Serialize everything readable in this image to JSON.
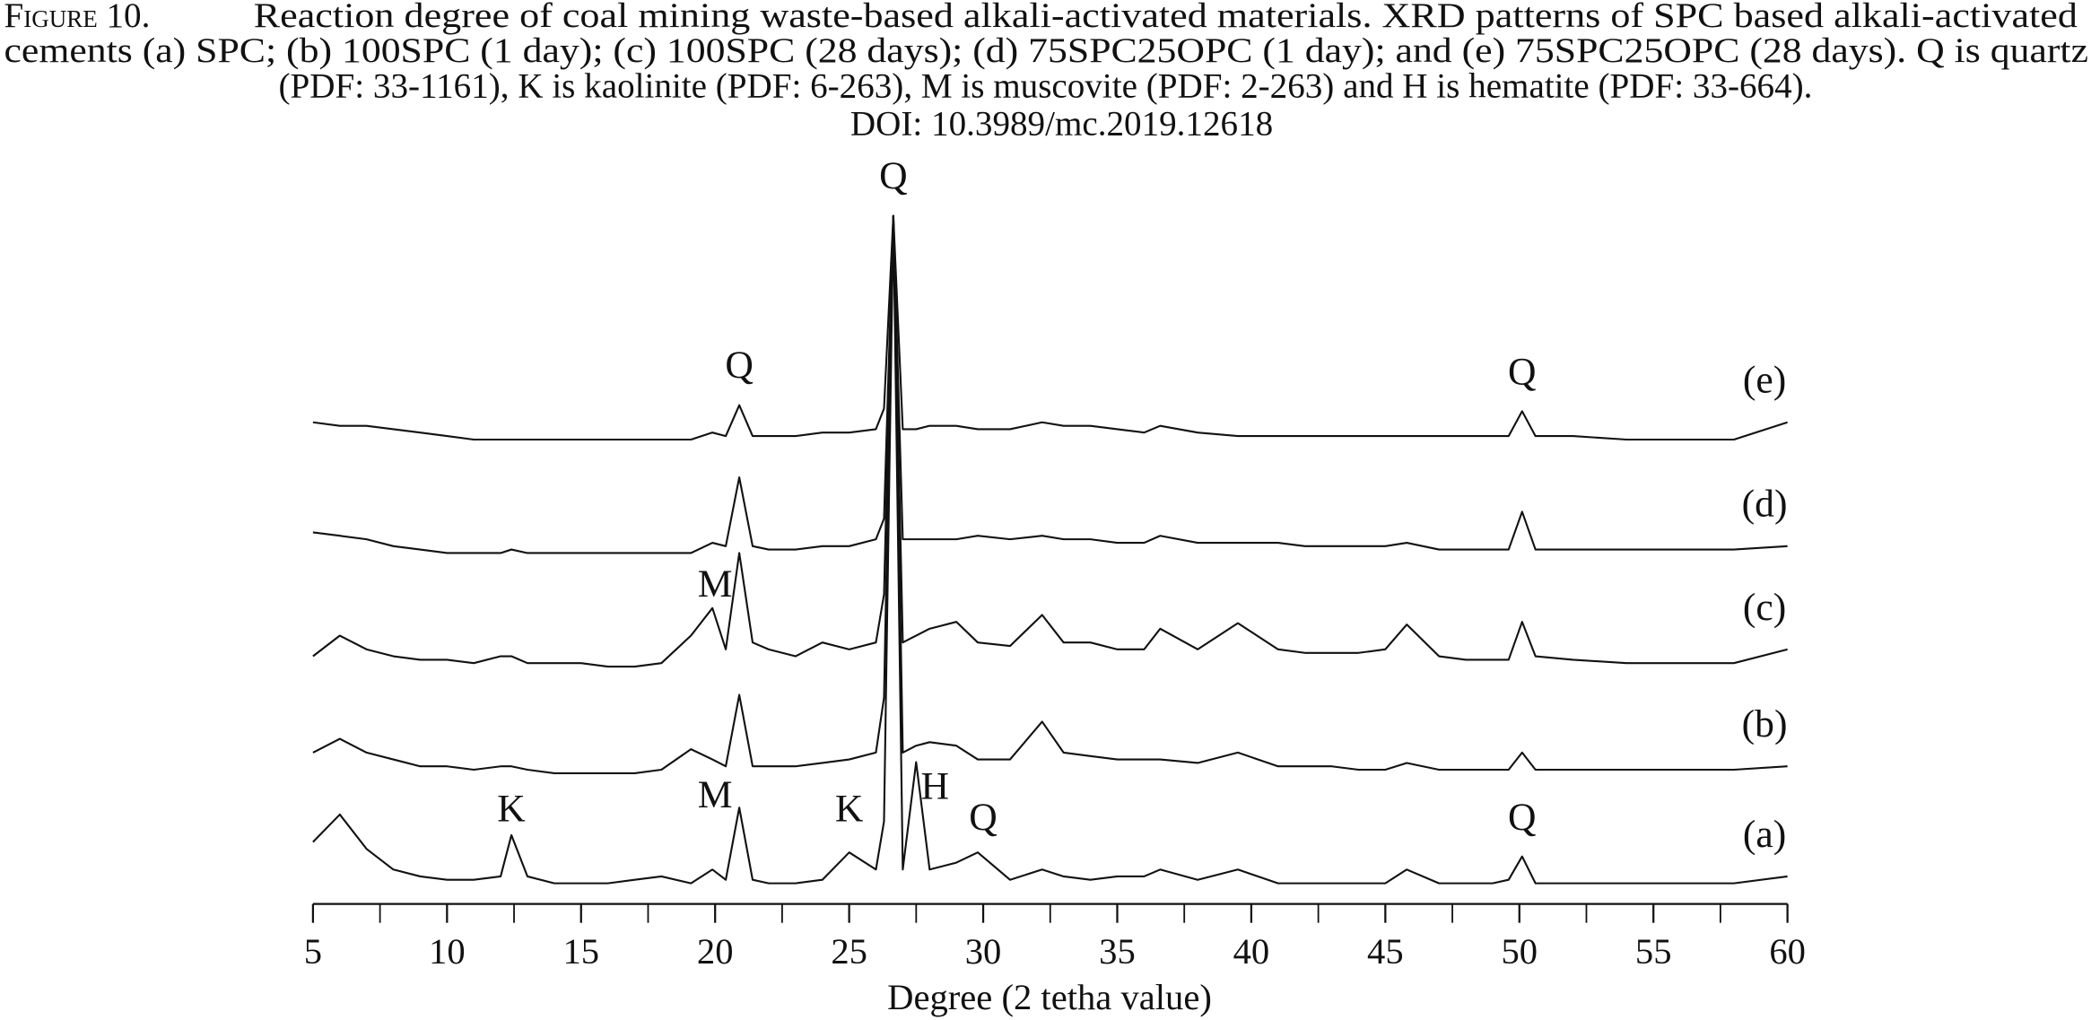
{
  "chart_data": {
    "type": "line",
    "caption_label": "Figure 10.",
    "caption_lines": [
      "Reaction degree of coal mining waste-based alkali-activated materials. XRD patterns of SPC based alkali-activated",
      "cements (a) SPC; (b) 100SPC (1 day); (c) 100SPC (28 days); (d) 75SPC25OPC (1 day); and (e) 75SPC25OPC (28 days). Q is quartz",
      "(PDF: 33-1161), K is kaolinite (PDF: 6-263), M is muscovite (PDF: 2-263) and H is hematite (PDF: 33-664).",
      "DOI: 10.3989/mc.2019.12618"
    ],
    "x_label": "Degree (2 tetha value)",
    "xlim": [
      5,
      60
    ],
    "xticks": [
      5,
      10,
      15,
      20,
      25,
      30,
      35,
      40,
      45,
      50,
      55,
      60
    ],
    "ylim": [
      0,
      100
    ],
    "x": [
      5,
      6,
      7,
      8,
      9,
      10,
      11,
      12,
      12.4,
      13,
      14,
      15,
      16,
      17,
      18,
      19.1,
      19.9,
      20.4,
      20.9,
      21.4,
      22,
      23,
      24,
      25,
      26,
      26.3,
      26.65,
      27,
      27.5,
      28,
      29,
      29.8,
      31,
      32.2,
      33,
      34,
      35,
      36,
      36.6,
      38,
      39.5,
      41,
      42,
      43,
      44,
      45,
      45.8,
      47,
      48,
      49,
      49.6,
      50.1,
      50.6,
      52,
      54,
      56,
      58,
      60
    ],
    "series": [
      {
        "name": "(a)",
        "color": "#111111",
        "values": [
          9,
          13,
          8,
          5,
          4,
          3.5,
          3.5,
          4,
          10,
          4,
          3,
          3,
          3,
          3.5,
          4,
          3,
          5,
          3.5,
          14,
          3.5,
          3,
          3,
          3.5,
          7.5,
          5,
          12,
          100,
          5,
          20.6,
          5,
          6,
          7.5,
          3.5,
          5,
          4,
          3.5,
          4,
          4,
          5,
          3.5,
          5,
          3,
          3,
          3,
          3,
          3,
          5,
          3,
          3,
          3,
          3.5,
          6.9,
          3,
          3,
          3,
          3,
          3,
          4
        ]
      },
      {
        "name": "(b)",
        "color": "#111111",
        "values": [
          22,
          24,
          22,
          21,
          20,
          20,
          19.5,
          20,
          20,
          19.5,
          19,
          19,
          19,
          19,
          19.5,
          22.5,
          21,
          20,
          30.4,
          20,
          20,
          20,
          20.5,
          21,
          22,
          30,
          100,
          22,
          23,
          23.5,
          23,
          21,
          21,
          26.5,
          22,
          21.5,
          21,
          21,
          21,
          20.5,
          22,
          20,
          20,
          20,
          19.5,
          19.5,
          20.5,
          19.5,
          19.5,
          19.5,
          19.5,
          22,
          19.5,
          19.5,
          19.5,
          19.5,
          19.5,
          20
        ]
      },
      {
        "name": "(c)",
        "color": "#111111",
        "values": [
          36,
          39,
          37,
          36,
          35.5,
          35.5,
          35,
          36,
          36,
          35,
          35,
          35,
          34.5,
          34.5,
          35,
          39,
          43,
          37,
          51,
          38,
          37,
          36,
          38,
          37,
          38,
          45,
          100,
          38,
          39,
          40,
          41,
          38,
          37.5,
          42,
          38,
          38,
          37,
          37,
          40,
          37,
          40.8,
          37,
          36.5,
          36.5,
          36.5,
          37,
          40.6,
          36,
          35.5,
          35.5,
          35.5,
          41,
          36,
          35.5,
          35,
          35,
          35,
          37
        ]
      },
      {
        "name": "(d)",
        "color": "#111111",
        "values": [
          54,
          53.5,
          53,
          52,
          51.5,
          51,
          51,
          51,
          51.5,
          51,
          51,
          51,
          51,
          51,
          51,
          51,
          52.5,
          52,
          62,
          52,
          51.5,
          51.5,
          52,
          52,
          53,
          56,
          100,
          53,
          53,
          53,
          53,
          53.5,
          53,
          53.5,
          53,
          53,
          52.5,
          52.5,
          53.5,
          52.5,
          52.5,
          52.5,
          52,
          52,
          52,
          52,
          52.5,
          51.5,
          51.5,
          51.5,
          51.5,
          57,
          51.5,
          51.5,
          51.5,
          51.5,
          51.5,
          52
        ]
      },
      {
        "name": "(e)",
        "color": "#111111",
        "values": [
          70,
          69.5,
          69.5,
          69,
          68.5,
          68,
          67.5,
          67.5,
          67.5,
          67.5,
          67.5,
          67.5,
          67.5,
          67.5,
          67.5,
          67.5,
          68.5,
          68,
          72.5,
          68,
          68,
          68,
          68.5,
          68.5,
          69,
          72,
          100,
          69,
          69,
          69.5,
          69.5,
          69,
          69,
          70,
          69.5,
          69.5,
          69,
          68.5,
          69.5,
          68.5,
          68,
          68,
          68,
          68,
          68,
          68,
          68,
          68,
          68,
          68,
          68,
          71.6,
          68,
          68,
          67.5,
          67.5,
          67.5,
          70
        ]
      }
    ],
    "annotations": [
      "Q",
      "Q",
      "Q",
      "M",
      "K",
      "M",
      "K",
      "H",
      "Q",
      "Q"
    ]
  }
}
